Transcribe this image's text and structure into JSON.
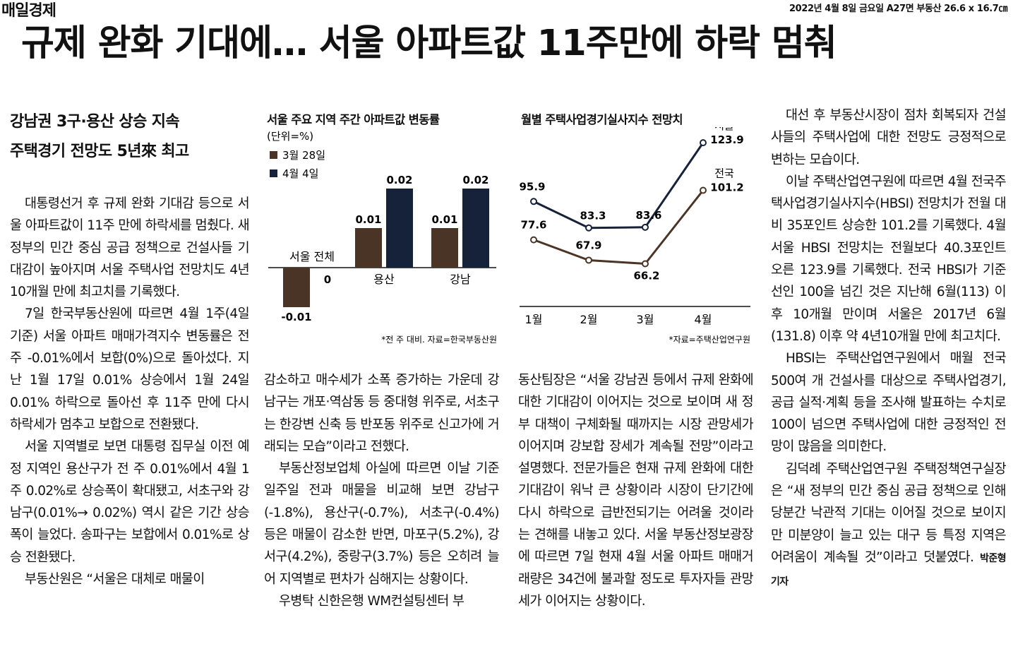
{
  "masthead": "매일경제",
  "dateline": "2022년 4월 8일 금요일 A27면 부동산 26.6 x 16.7㎝",
  "headline": "규제 완화 기대에… 서울 아파트값 11주만에 하락 멈춰",
  "subheads": [
    "강남권 3구·용산 상승 지속",
    "주택경기 전망도 5년來 최고"
  ],
  "col1": [
    "대통령선거 후 규제 완화 기대감 등으로 서울 아파트값이 11주 만에 하락세를 멈췄다. 새 정부의 민간 중심 공급 정책으로 건설사들 기대감이 높아지며 서울 주택사업 전망치도 4년10개월 만에 최고치를 기록했다.",
    "7일 한국부동산원에 따르면 4월 1주(4일 기준) 서울 아파트 매매가격지수 변동률은 전 주 -0.01%에서 보합(0%)으로 돌아섰다. 지난 1월 17일 0.01% 상승에서 1월 24일 0.01% 하락으로 돌아선 후 11주 만에 다시 하락세가 멈추고 보합으로 전환됐다.",
    "서울 지역별로 보면 대통령 집무실 이전 예정 지역인 용산구가 전 주 0.01%에서 4월 1주 0.02%로 상승폭이 확대됐고, 서초구와 강남구(0.01%→ 0.02%) 역시 같은 기간 상승폭이 늘었다. 송파구는 보합에서 0.01%로 상승 전환됐다.",
    "부동산원은 “서울은 대체로 매물이"
  ],
  "col2": [
    "감소하고 매수세가 소폭 증가하는 가운데 강남구는 개포·역삼동 등 중대형 위주로, 서초구는 한강변 신축 등 반포동 위주로 신고가에 거래되는 모습”이라고 전했다.",
    "부동산정보업체 아실에 따르면 이날 기준 일주일 전과 매물을 비교해 보면 강남구(-1.8%), 용산구(-0.7%), 서초구(-0.4%) 등은 매물이 감소한 반면, 마포구(5.2%), 강서구(4.2%), 중랑구(3.7%) 등은 오히려 늘어 지역별로 편차가 심해지는 상황이다.",
    "우병탁 신한은행 WM컨설팅센터 부"
  ],
  "col3": [
    "동산팀장은 “서울 강남권 등에서 규제 완화에 대한 기대감이 이어지는 것으로 보이며 새 정부 대책이 구체화될 때까지는 시장 관망세가 이어지며 강보합 장세가 계속될 전망”이라고 설명했다. 전문가들은 현재 규제 완화에 대한 기대감이 워낙 큰 상황이라 시장이 단기간에 다시 하락으로 급반전되기는 어려울 것이라는 견해를 내놓고 있다. 서울 부동산정보광장에 따르면 7일 현재 4월 서울 아파트 매매거래량은 34건에 불과할 정도로 투자자들 관망세가 이어지는 상황이다."
  ],
  "col4": [
    "대선 후 부동산시장이 점차 회복되자 건설사들의 주택사업에 대한 전망도 긍정적으로 변하는 모습이다.",
    "이날 주택산업연구원에 따르면 4월 전국주택사업경기실사지수(HBSI) 전망치가 전월 대비 35포인트 상승한 101.2를 기록했다. 4월 서울 HBSI 전망치는 전월보다 40.3포인트 오른 123.9를 기록했다. 전국 HBSI가 기준선인 100을 넘긴 것은 지난해 6월(113) 이후 10개월 만이며 서울은 2017년 6월(131.8) 이후 약 4년10개월 만에 최고치다.",
    "HBSI는 주택산업연구원에서 매월 전국 500여 개 건설사를 대상으로 주택사업경기, 공급 실적·계획 등을 조사해 발표하는 수치로 100이 넘으면 주택사업에 대한 긍정적인 전망이 많음을 의미한다.",
    "김덕례 주택산업연구원 주택정책연구실장은 “새 정부의 민간 중심 공급 정책으로 인해 당분간 낙관적 기대는 이어질 것으로 보이지만 미분양이 늘고 있는 대구 등 특정 지역은 어려움이 계속될 것”이라고 덧붙였다."
  ],
  "byline": "박준형 기자",
  "colors": {
    "series1": "#4a3426",
    "series2": "#16223a",
    "ink": "#111111"
  },
  "chart_data": [
    {
      "type": "bar",
      "title": "서울 주요 지역 주간 아파트값 변동률",
      "unit": "(단위=%)",
      "categories": [
        "서울 전체",
        "용산",
        "강남"
      ],
      "series": [
        {
          "name": "3월 28일",
          "values": [
            -0.01,
            0.01,
            0.01
          ]
        },
        {
          "name": "4월 4일",
          "values": [
            0,
            0.02,
            0.02
          ]
        }
      ],
      "value_labels": [
        [
          "-0.01",
          "0"
        ],
        [
          "0.01",
          "0.02"
        ],
        [
          "0.01",
          "0.02"
        ]
      ],
      "source": "*전 주 대비. 자료=한국부동산원"
    },
    {
      "type": "line",
      "title": "월별 주택사업경기실사지수 전망치",
      "x": [
        "1월",
        "2월",
        "3월",
        "4월"
      ],
      "series": [
        {
          "name": "서울",
          "values": [
            95.9,
            83.3,
            83.6,
            123.9
          ],
          "labels": [
            "95.9",
            "83.3",
            "83.6",
            "123.9"
          ]
        },
        {
          "name": "전국",
          "values": [
            77.6,
            67.9,
            66.2,
            101.2
          ],
          "labels": [
            "77.6",
            "67.9",
            "66.2",
            "101.2"
          ]
        }
      ],
      "source": "*자료=주택산업연구원"
    }
  ]
}
